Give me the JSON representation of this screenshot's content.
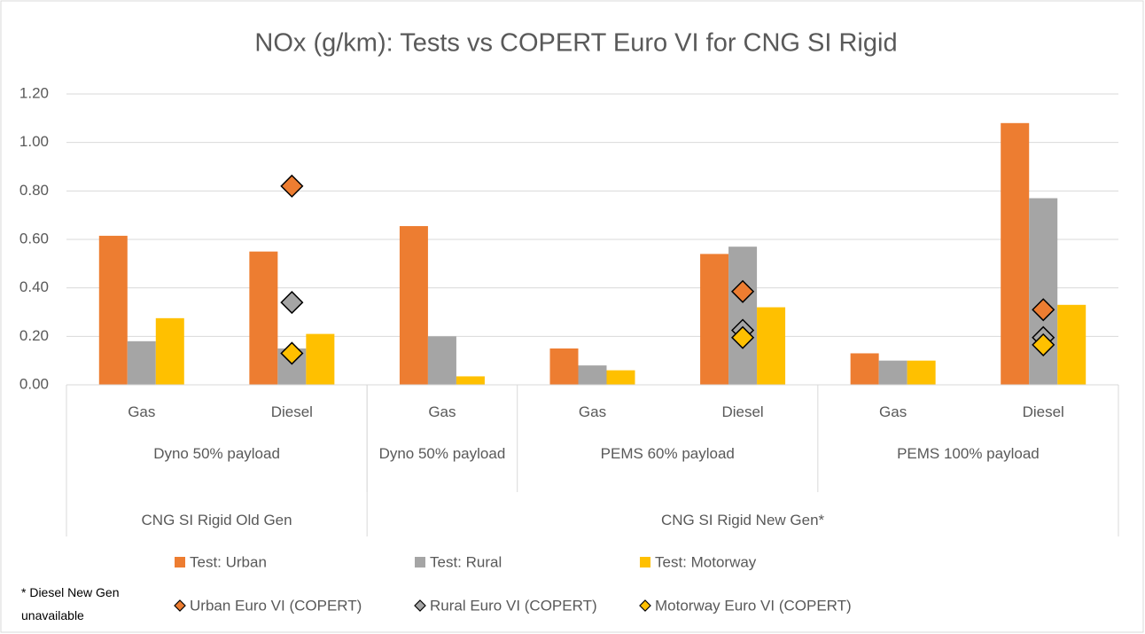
{
  "chart_data": {
    "type": "bar",
    "title": "NOx (g/km): Tests vs COPERT Euro VI for CNG SI Rigid",
    "groups": [
      {
        "name": "CNG SI Rigid Old Gen",
        "subgroups": [
          {
            "name": "Dyno 50% payload",
            "categories": [
              "Gas",
              "Diesel"
            ]
          }
        ]
      },
      {
        "name": "CNG SI Rigid New Gen*",
        "subgroups": [
          {
            "name": "Dyno 50% payload",
            "categories": [
              "Gas"
            ]
          },
          {
            "name": "PEMS 60% payload",
            "categories": [
              "Gas",
              "Diesel"
            ]
          },
          {
            "name": "PEMS 100% payload",
            "categories": [
              "Gas",
              "Diesel"
            ]
          }
        ]
      }
    ],
    "series": [
      {
        "name": "Test: Urban",
        "kind": "bar",
        "color": "#ed7d31",
        "values": [
          0.615,
          0.55,
          0.655,
          0.15,
          0.54,
          0.13,
          1.08
        ]
      },
      {
        "name": "Test: Rural",
        "kind": "bar",
        "color": "#a5a5a5",
        "values": [
          0.18,
          0.15,
          0.2,
          0.08,
          0.57,
          0.1,
          0.77
        ]
      },
      {
        "name": "Test: Motorway",
        "kind": "bar",
        "color": "#ffc000",
        "values": [
          0.275,
          0.21,
          0.035,
          0.06,
          0.32,
          0.1,
          0.33
        ]
      },
      {
        "name": "Urban Euro VI (COPERT)",
        "kind": "marker",
        "color": "#ed7d31",
        "values": [
          null,
          0.82,
          null,
          null,
          0.385,
          null,
          0.31
        ]
      },
      {
        "name": "Rural Euro VI (COPERT)",
        "kind": "marker",
        "color": "#a5a5a5",
        "values": [
          null,
          0.34,
          null,
          null,
          0.225,
          null,
          0.195
        ]
      },
      {
        "name": "Motorway Euro VI (COPERT)",
        "kind": "marker",
        "color": "#ffc000",
        "values": [
          null,
          0.13,
          null,
          null,
          0.195,
          null,
          0.165
        ]
      }
    ],
    "ylim": [
      0,
      1.2
    ],
    "yticks": [
      {
        "value": 0,
        "label": "0.00"
      },
      {
        "value": 0.2,
        "label": "0.20"
      },
      {
        "value": 0.4,
        "label": "0.40"
      },
      {
        "value": 0.6,
        "label": "0.60"
      },
      {
        "value": 0.8,
        "label": "0.80"
      },
      {
        "value": 1,
        "label": "1.00"
      },
      {
        "value": 1.2,
        "label": "1.20"
      }
    ],
    "grid": true,
    "note": "* Diesel New Gen unavailable"
  }
}
